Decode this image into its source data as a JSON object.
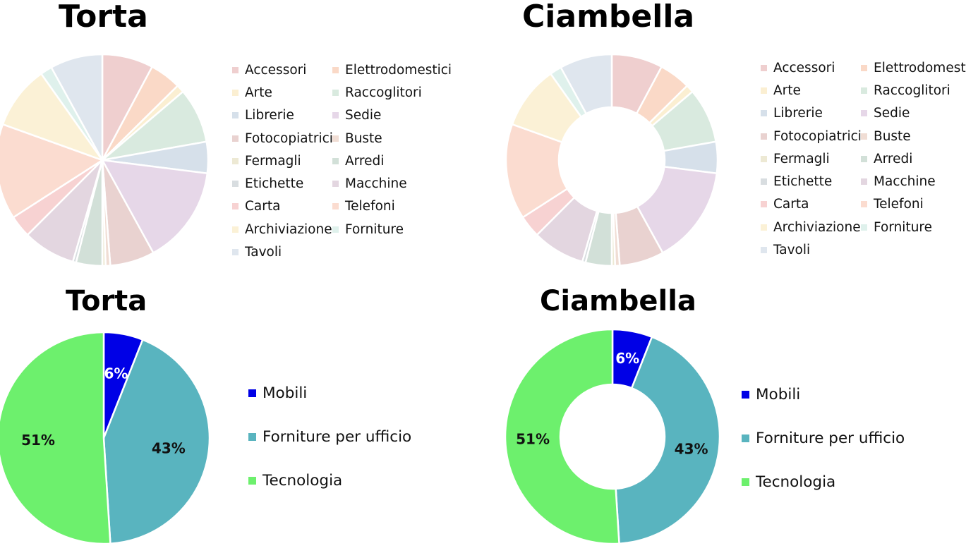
{
  "chart_data": [
    {
      "type": "pie",
      "title": "Torta",
      "categories": [
        "Accessori",
        "Elettrodomestici",
        "Arte",
        "Raccoglitori",
        "Librerie",
        "Sedie",
        "Fotocopiatrici",
        "Buste",
        "Fermagli",
        "Arredi",
        "Etichette",
        "Macchine",
        "Carta",
        "Telefoni",
        "Archiviazione",
        "Forniture",
        "Tavoli"
      ],
      "values": [
        7.8,
        4.8,
        1.2,
        8.4,
        4.8,
        15.0,
        6.8,
        0.7,
        0.5,
        4.0,
        0.5,
        8.0,
        3.4,
        14.6,
        9.7,
        1.8,
        8.0
      ],
      "colors": [
        "#efcfcf",
        "#fad9c7",
        "#fbefd2",
        "#d9eadf",
        "#d6e0ea",
        "#e6d7e8",
        "#e9d2d0",
        "#f0ddd4",
        "#ede9d4",
        "#d2e0d8",
        "#d8dde0",
        "#e3d6e0",
        "#f7d2d2",
        "#fbdcd0",
        "#fbf1d6",
        "#dff1ec",
        "#dfe6ee"
      ],
      "legend_position": "right",
      "labels_shown": false
    },
    {
      "type": "donut",
      "title": "Ciambella",
      "categories": [
        "Accessori",
        "Elettrodomestici",
        "Arte",
        "Raccoglitori",
        "Librerie",
        "Sedie",
        "Fotocopiatrici",
        "Buste",
        "Fermagli",
        "Arredi",
        "Etichette",
        "Macchine",
        "Carta",
        "Telefoni",
        "Archiviazione",
        "Forniture",
        "Tavoli"
      ],
      "values": [
        7.8,
        4.8,
        1.2,
        8.4,
        4.8,
        15.0,
        6.8,
        0.7,
        0.5,
        4.0,
        0.5,
        8.0,
        3.4,
        14.6,
        9.7,
        1.8,
        8.0
      ],
      "colors": [
        "#efcfcf",
        "#fad9c7",
        "#fbefd2",
        "#d9eadf",
        "#d6e0ea",
        "#e6d7e8",
        "#e9d2d0",
        "#f0ddd4",
        "#ede9d4",
        "#d2e0d8",
        "#d8dde0",
        "#e3d6e0",
        "#f7d2d2",
        "#fbdcd0",
        "#fbf1d6",
        "#dff1ec",
        "#dfe6ee"
      ],
      "legend_position": "right",
      "labels_shown": false
    },
    {
      "type": "pie",
      "title": "Torta",
      "categories": [
        "Mobili",
        "Forniture per ufficio",
        "Tecnologia"
      ],
      "values": [
        6,
        43,
        51
      ],
      "data_labels": [
        "6%",
        "43%",
        "51%"
      ],
      "colors": [
        "#0000e6",
        "#59b4bf",
        "#6df06d"
      ],
      "label_colors": [
        "#ffffff",
        "#111111",
        "#111111"
      ],
      "legend_position": "right",
      "labels_shown": true
    },
    {
      "type": "donut",
      "title": "Ciambella",
      "categories": [
        "Mobili",
        "Forniture per ufficio",
        "Tecnologia"
      ],
      "values": [
        6,
        43,
        51
      ],
      "data_labels": [
        "6%",
        "43%",
        "51%"
      ],
      "colors": [
        "#0000e6",
        "#59b4bf",
        "#6df06d"
      ],
      "label_colors": [
        "#ffffff",
        "#111111",
        "#111111"
      ],
      "legend_position": "right",
      "labels_shown": true
    }
  ]
}
